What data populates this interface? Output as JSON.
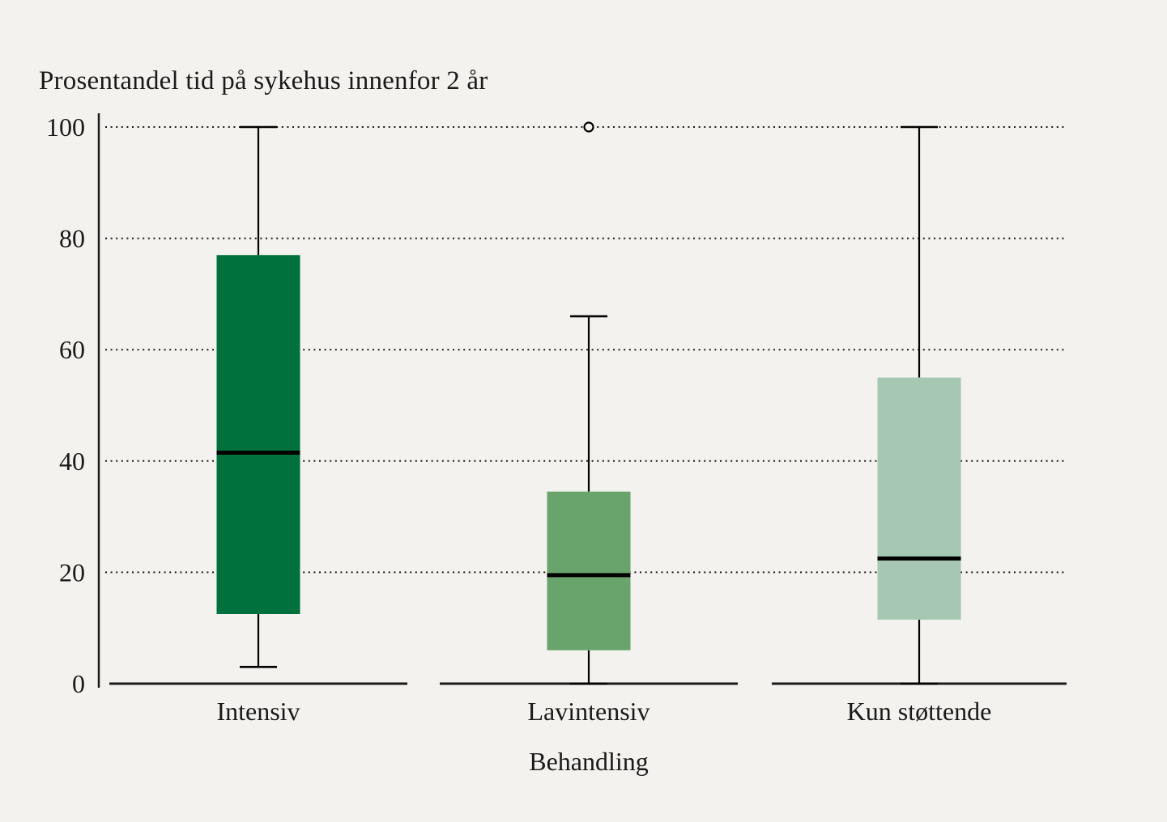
{
  "figure": {
    "background_color": "#f3f2ee",
    "line_color": "#1a1a1a",
    "median_color": "#000000",
    "text_color": "#1a1a1a"
  },
  "chart_data": {
    "type": "boxplot",
    "title": "Prosentandel tid på sykehus innenfor 2 år",
    "xlabel": "Behandling",
    "ylabel": "",
    "ylim": [
      0,
      100
    ],
    "yticks": [
      0,
      20,
      40,
      60,
      80,
      100
    ],
    "grid": "horizontal dotted lines at yticks 20-100; solid baseline segment under each category",
    "legend": "none",
    "categories": [
      "Intensiv",
      "Lavintensiv",
      "Kun støttende"
    ],
    "series": [
      {
        "category": "Intensiv",
        "whisker_low": 3,
        "q1": 12.5,
        "median": 41.5,
        "q3": 77,
        "whisker_high": 100,
        "outliers": [],
        "color": "#00713d"
      },
      {
        "category": "Lavintensiv",
        "whisker_low": 0,
        "q1": 6,
        "median": 19.5,
        "q3": 34.5,
        "whisker_high": 66,
        "outliers": [
          100
        ],
        "color": "#69a46d"
      },
      {
        "category": "Kun støttende",
        "whisker_low": 0,
        "q1": 11.5,
        "median": 22.5,
        "q3": 55,
        "whisker_high": 100,
        "outliers": [],
        "color": "#a6c8b2"
      }
    ]
  }
}
